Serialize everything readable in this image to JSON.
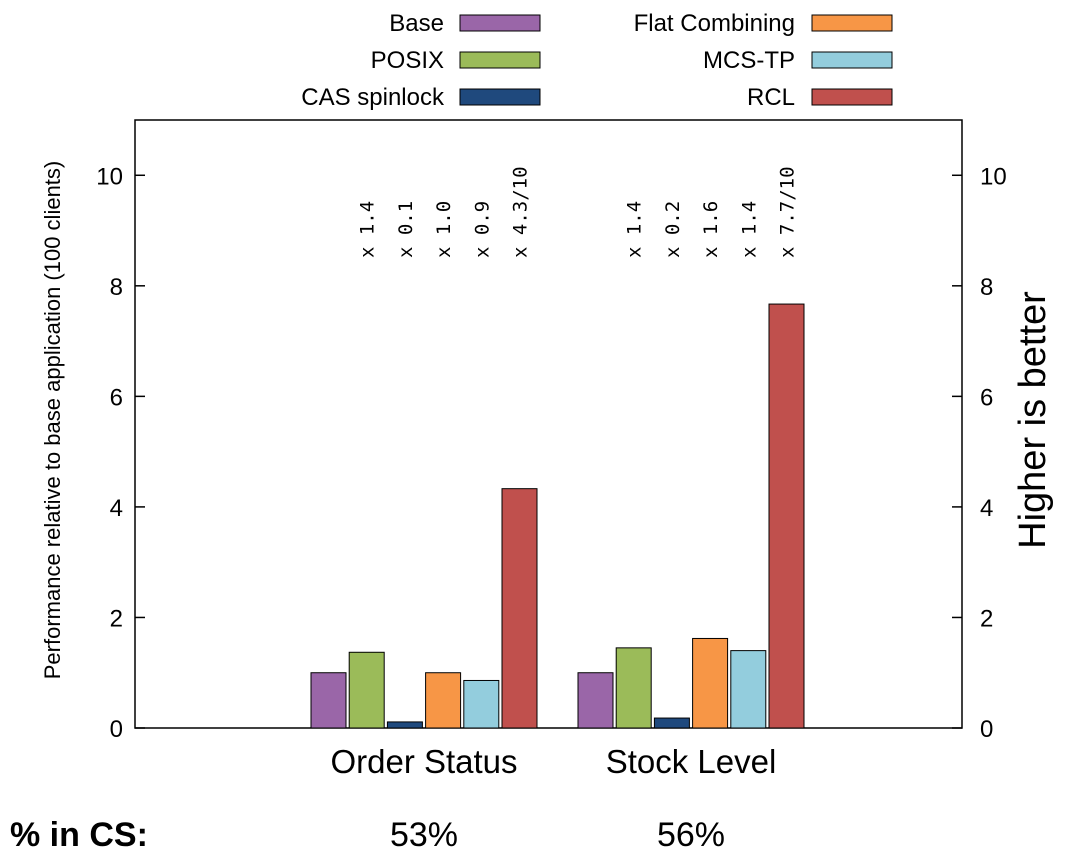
{
  "chart_data": {
    "type": "bar",
    "ylabel": "Performance relative to base application (100 clients)",
    "y2label": "Higher is better",
    "ylim": [
      0,
      11
    ],
    "yticks": [
      0,
      2,
      4,
      6,
      8,
      10
    ],
    "grid": false,
    "legend_position": "top",
    "categories": [
      "Order  Status",
      "Stock  Level"
    ],
    "series": [
      {
        "name": "Base",
        "color": "#9a66a8",
        "values": [
          1.0,
          1.0
        ]
      },
      {
        "name": "POSIX",
        "color": "#9bbb59",
        "values": [
          1.37,
          1.45
        ]
      },
      {
        "name": "CAS spinlock",
        "color": "#1f497d",
        "values": [
          0.11,
          0.18
        ]
      },
      {
        "name": "Flat Combining",
        "color": "#f79646",
        "values": [
          1.0,
          1.62
        ]
      },
      {
        "name": "MCS-TP",
        "color": "#93cddd",
        "values": [
          0.86,
          1.4
        ]
      },
      {
        "name": "RCL",
        "color": "#c0504d",
        "values": [
          4.33,
          7.67
        ]
      }
    ],
    "annotations": [
      [
        "x 1.4",
        "x 0.1",
        "x 1.0",
        "x 0.9",
        "x 4.3/10"
      ],
      [
        "x 1.4",
        "x 0.2",
        "x 1.6",
        "x 1.4",
        "x 7.7/10"
      ]
    ],
    "cs_label": "% in CS:",
    "cs_values": [
      "53%",
      "56%"
    ]
  }
}
